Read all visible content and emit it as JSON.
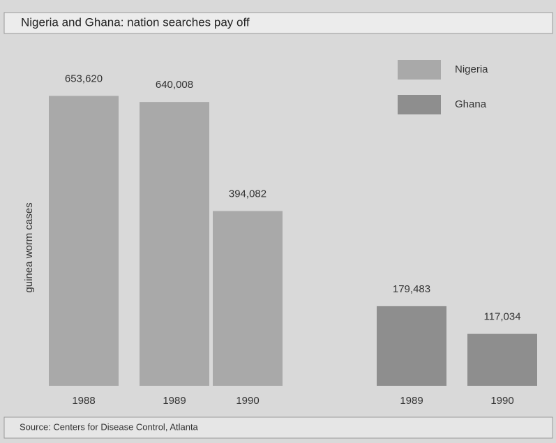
{
  "chart_data": {
    "type": "bar",
    "title": "Nigeria and Ghana: nation searches pay off",
    "y_label": "guinea worm cases",
    "source": "Source: Centers for Disease Control, Atlanta",
    "categories": [
      "1988",
      "1989",
      "1990",
      "1989",
      "1990"
    ],
    "series": [
      {
        "name": "Nigeria",
        "color": "#a9a9a9",
        "values": [
          653620,
          640008,
          394082,
          null,
          null
        ],
        "value_labels": [
          "653,620",
          "640,008",
          "394,082",
          null,
          null
        ]
      },
      {
        "name": "Ghana",
        "color": "#8e8e8e",
        "values": [
          null,
          null,
          null,
          179483,
          117034
        ],
        "value_labels": [
          null,
          null,
          null,
          "179,483",
          "117,034"
        ]
      }
    ],
    "ylim": [
      0,
      700000
    ],
    "legend": "top-right"
  }
}
